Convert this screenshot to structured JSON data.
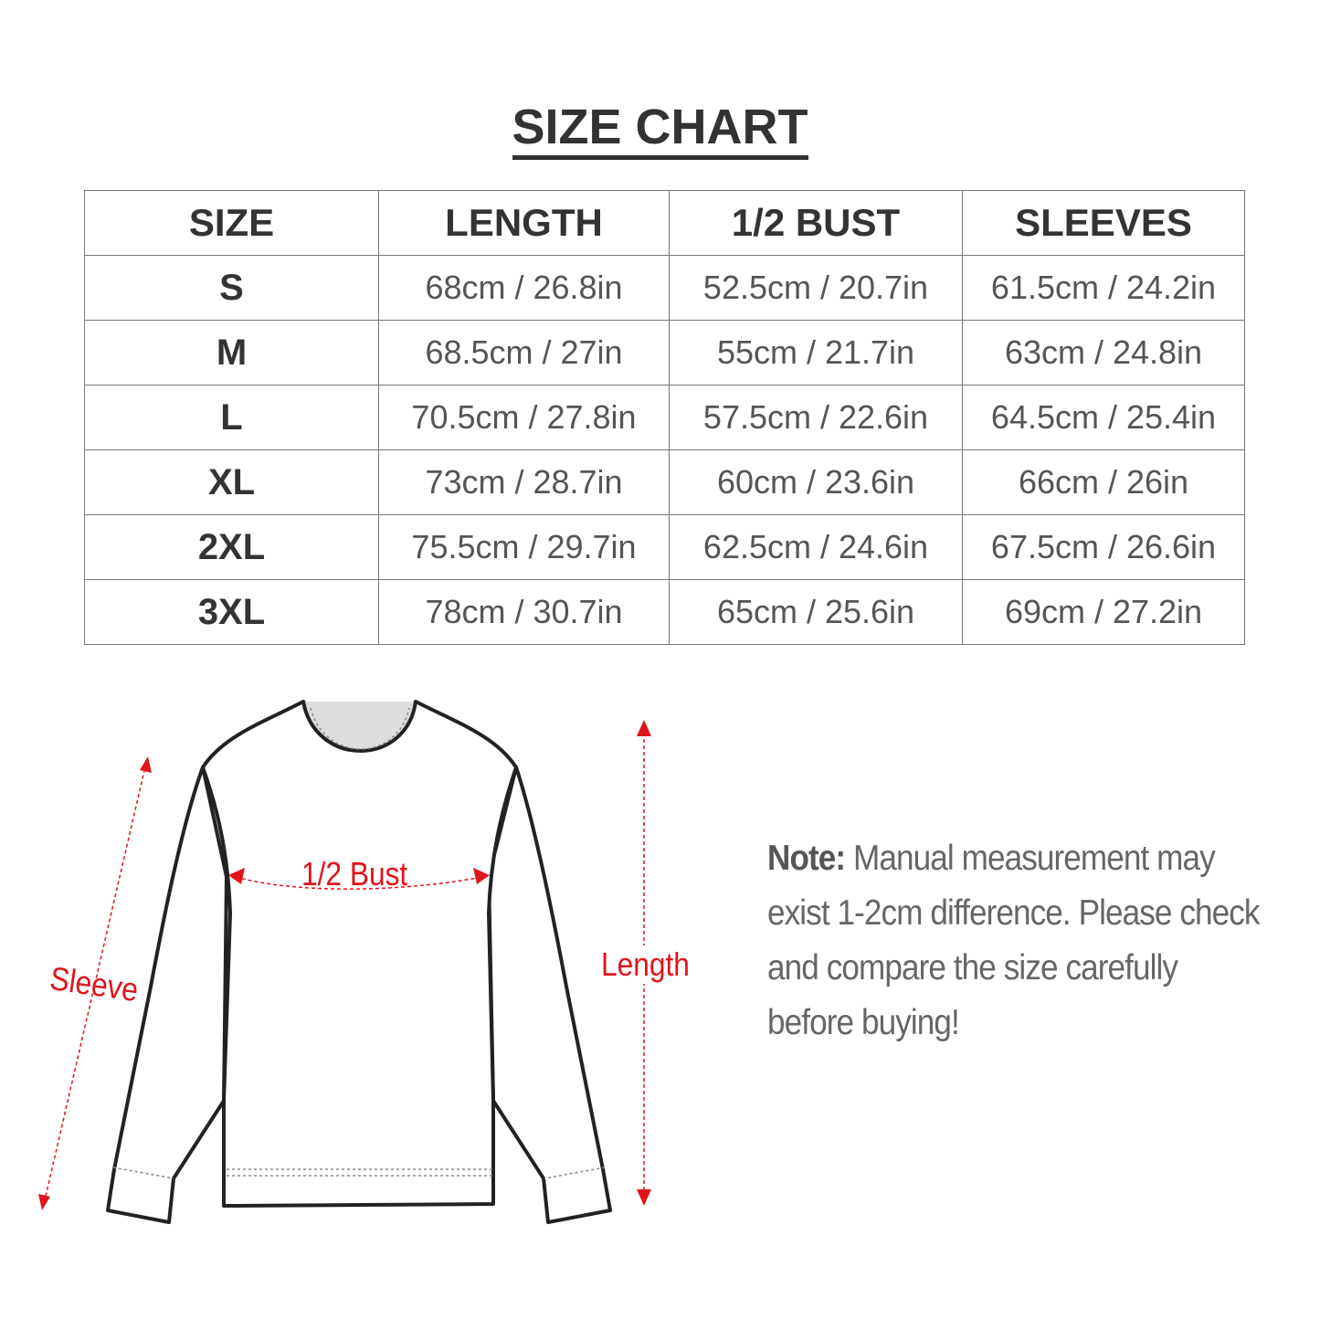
{
  "title": "SIZE CHART",
  "table": {
    "headers": [
      "SIZE",
      "LENGTH",
      "1/2 BUST",
      "SLEEVES"
    ],
    "rows": [
      [
        "S",
        "68cm / 26.8in",
        "52.5cm / 20.7in",
        "61.5cm / 24.2in"
      ],
      [
        "M",
        "68.5cm / 27in",
        "55cm / 21.7in",
        "63cm / 24.8in"
      ],
      [
        "L",
        "70.5cm / 27.8in",
        "57.5cm / 22.6in",
        "64.5cm / 25.4in"
      ],
      [
        "XL",
        "73cm / 28.7in",
        "60cm / 23.6in",
        "66cm / 26in"
      ],
      [
        "2XL",
        "75.5cm / 29.7in",
        "62.5cm / 24.6in",
        "67.5cm / 26.6in"
      ],
      [
        "3XL",
        "78cm / 30.7in",
        "65cm / 25.6in",
        "69cm / 27.2in"
      ]
    ]
  },
  "diagram": {
    "bust_label": "1/2 Bust",
    "sleeve_label": "Sleeve",
    "length_label": "Length",
    "measure_color": "#e0141b"
  },
  "note": {
    "prefix": "Note:",
    "text": " Manual measurement may exist 1-2cm difference. Please check and compare the size carefully before buying!"
  }
}
